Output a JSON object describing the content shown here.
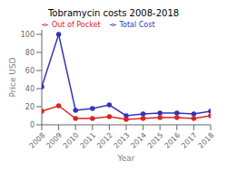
{
  "chart_data": {
    "type": "line",
    "title": "Tobramycin costs 2008-2018",
    "x_label": "Year",
    "y_label": "Price USD",
    "x": [
      2008,
      2009,
      2010,
      2011,
      2012,
      2013,
      2014,
      2015,
      2016,
      2017,
      2018
    ],
    "series": [
      {
        "name": "Total Cost",
        "color": "#3333bb",
        "values": [
          42,
          100,
          16,
          18,
          22,
          10,
          12,
          13,
          13,
          12,
          15
        ]
      },
      {
        "name": "Out of Pocket",
        "color": "#dd2222",
        "values": [
          15,
          21,
          7,
          7,
          9,
          6,
          7,
          8,
          8,
          7,
          10
        ]
      }
    ],
    "xlim": [
      2008,
      2018
    ],
    "xticks": [
      2008,
      2009,
      2010,
      2011,
      2012,
      2013,
      2014,
      2015,
      2016,
      2017,
      2018
    ],
    "ylim": [
      0,
      105
    ],
    "yticks": [
      0,
      20,
      40,
      60,
      80,
      100
    ],
    "legend": "upper left",
    "marker": "o",
    "grid": false
  }
}
